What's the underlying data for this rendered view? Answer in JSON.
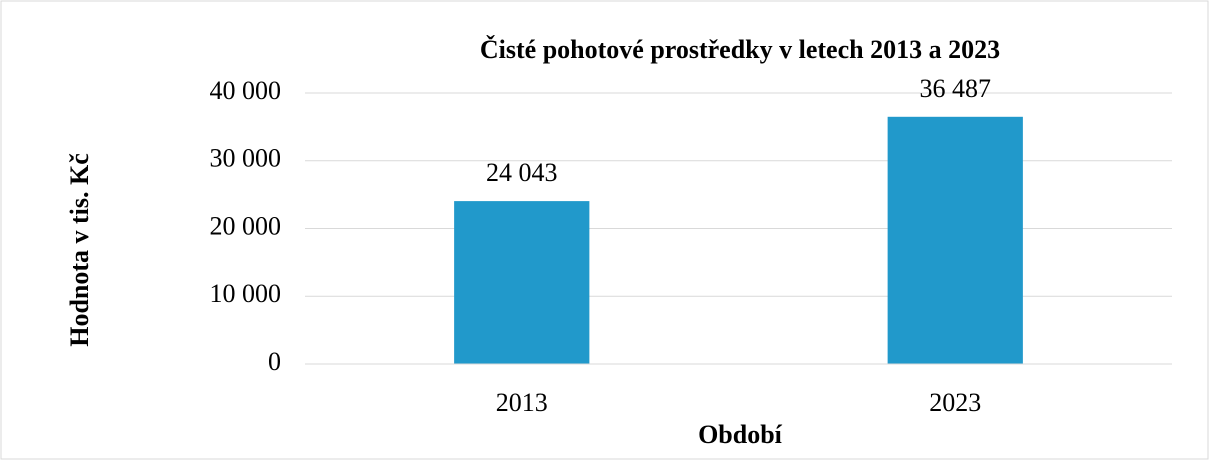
{
  "chart_data": {
    "type": "bar",
    "title": "Čisté pohotové prostředky v letech 2013 a 2023",
    "x_label": "Období",
    "y_label": "Hodnota v tis. Kč",
    "categories": [
      "2013",
      "2023"
    ],
    "values": [
      24043,
      36487
    ],
    "value_labels": [
      "24 043",
      "36 487"
    ],
    "color": "#2199cb",
    "ylim": [
      0,
      40000
    ],
    "yticks": [
      0,
      {
        "value": 10000,
        "label": "10 000"
      },
      {
        "value": 20000,
        "label": "20 000"
      },
      {
        "value": 30000,
        "label": "30 000"
      },
      {
        "value": 40000,
        "label": "40 000"
      }
    ],
    "grid": true
  }
}
